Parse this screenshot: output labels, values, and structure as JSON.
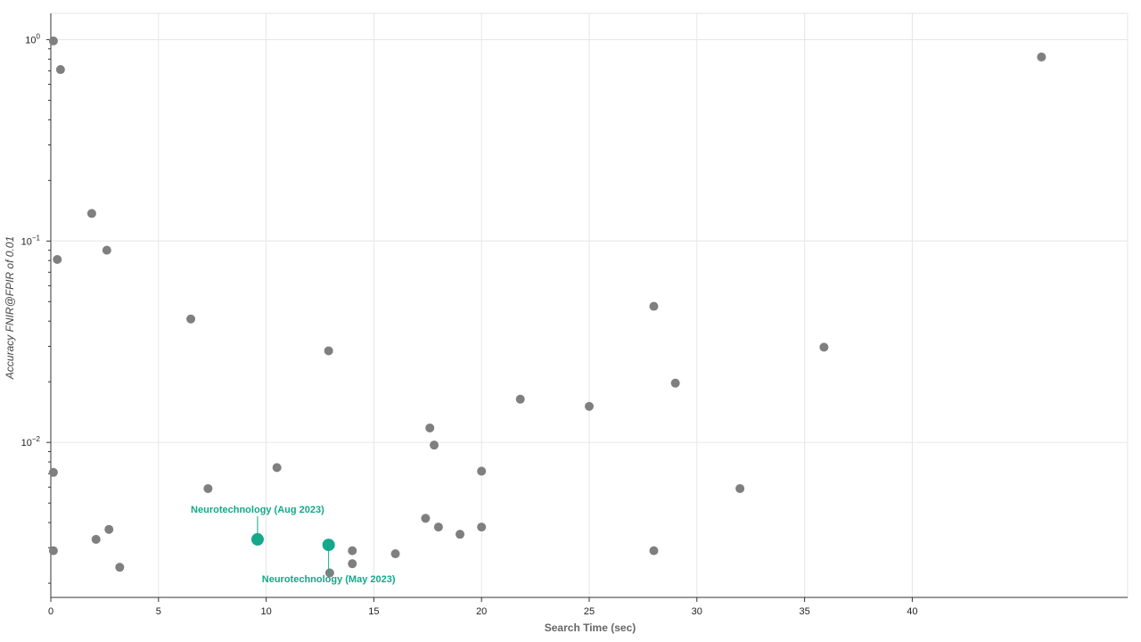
{
  "chart_data": {
    "type": "scatter",
    "xlabel": "Search Time (sec)",
    "ylabel": "Accuracy FNIR@FPIR of 0.01",
    "y_scale": "log",
    "xlim": [
      0,
      50
    ],
    "ylim": [
      0.0017,
      1.35
    ],
    "x_ticks": [
      0,
      5,
      10,
      15,
      20,
      25,
      30,
      35,
      40
    ],
    "y_ticks": [
      {
        "value": 1,
        "base": "10",
        "exp": "0"
      },
      {
        "value": 0.1,
        "base": "10",
        "exp": "−1"
      },
      {
        "value": 0.01,
        "base": "10",
        "exp": "−2"
      }
    ],
    "grid": true,
    "colors": {
      "point": "#7f7f7f",
      "highlight": "#13a98a",
      "grid": "#e6e6e6",
      "axis": "#333333"
    },
    "points": [
      {
        "x": 0.12,
        "y": 0.985
      },
      {
        "x": 0.45,
        "y": 0.71
      },
      {
        "x": 1.9,
        "y": 0.137
      },
      {
        "x": 0.3,
        "y": 0.081
      },
      {
        "x": 2.6,
        "y": 0.09
      },
      {
        "x": 6.5,
        "y": 0.041
      },
      {
        "x": 12.9,
        "y": 0.0285
      },
      {
        "x": 0.12,
        "y": 0.0071
      },
      {
        "x": 7.3,
        "y": 0.0059
      },
      {
        "x": 10.5,
        "y": 0.0075
      },
      {
        "x": 0.12,
        "y": 0.0029
      },
      {
        "x": 2.1,
        "y": 0.0033
      },
      {
        "x": 2.7,
        "y": 0.0037
      },
      {
        "x": 3.2,
        "y": 0.0024
      },
      {
        "x": 12.95,
        "y": 0.00225
      },
      {
        "x": 14.0,
        "y": 0.0029
      },
      {
        "x": 14.0,
        "y": 0.0025
      },
      {
        "x": 16.0,
        "y": 0.0028
      },
      {
        "x": 17.4,
        "y": 0.0042
      },
      {
        "x": 17.6,
        "y": 0.0118
      },
      {
        "x": 17.8,
        "y": 0.0097
      },
      {
        "x": 18.0,
        "y": 0.0038
      },
      {
        "x": 19.0,
        "y": 0.0035
      },
      {
        "x": 20.0,
        "y": 0.0072
      },
      {
        "x": 20.0,
        "y": 0.0038
      },
      {
        "x": 21.8,
        "y": 0.0164
      },
      {
        "x": 25.0,
        "y": 0.0151
      },
      {
        "x": 28.0,
        "y": 0.0474
      },
      {
        "x": 29.0,
        "y": 0.0197
      },
      {
        "x": 28.0,
        "y": 0.0029
      },
      {
        "x": 32.0,
        "y": 0.0059
      },
      {
        "x": 35.9,
        "y": 0.0297
      },
      {
        "x": 46.0,
        "y": 0.82
      }
    ],
    "highlights": [
      {
        "x": 9.6,
        "y": 0.0033,
        "label": "Neurotechnology  (Aug 2023)",
        "label_pos": "above"
      },
      {
        "x": 12.9,
        "y": 0.0031,
        "label": "Neurotechnology  (May 2023)",
        "label_pos": "below"
      }
    ]
  }
}
